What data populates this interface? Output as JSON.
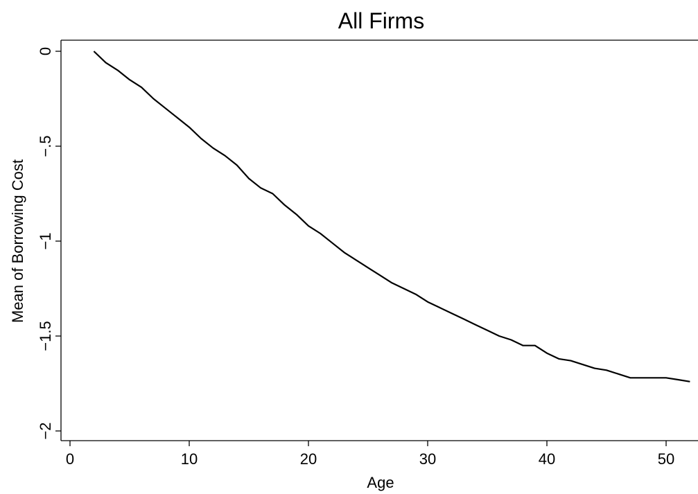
{
  "chart_data": {
    "type": "line",
    "title": "All Firms",
    "xlabel": "Age",
    "ylabel": "Mean of Borrowing Cost",
    "xlim": [
      -0.5,
      52.5
    ],
    "ylim": [
      -2.05,
      0.05
    ],
    "x_ticks": [
      0,
      10,
      20,
      30,
      40,
      50
    ],
    "x_tick_labels": [
      "0",
      "10",
      "20",
      "30",
      "40",
      "50"
    ],
    "y_ticks": [
      0,
      -0.5,
      -1,
      -1.5,
      -2
    ],
    "y_tick_labels": [
      "0",
      "−.5",
      "−1",
      "−1.5",
      "−2"
    ],
    "grid": false,
    "series": [
      {
        "x": [
          2,
          3,
          4,
          5,
          6,
          7,
          8,
          9,
          10,
          11,
          12,
          13,
          14,
          15,
          16,
          17,
          18,
          19,
          20,
          21,
          22,
          23,
          24,
          25,
          26,
          27,
          28,
          29,
          30,
          31,
          32,
          33,
          34,
          35,
          36,
          37,
          38,
          39,
          40,
          41,
          42,
          43,
          44,
          45,
          46,
          47,
          48,
          49,
          50,
          51,
          52
        ],
        "y": [
          0,
          -0.06,
          -0.1,
          -0.15,
          -0.19,
          -0.25,
          -0.3,
          -0.35,
          -0.4,
          -0.46,
          -0.51,
          -0.55,
          -0.6,
          -0.67,
          -0.72,
          -0.75,
          -0.81,
          -0.86,
          -0.92,
          -0.96,
          -1.01,
          -1.06,
          -1.1,
          -1.14,
          -1.18,
          -1.22,
          -1.25,
          -1.28,
          -1.32,
          -1.35,
          -1.38,
          -1.41,
          -1.44,
          -1.47,
          -1.5,
          -1.52,
          -1.55,
          -1.55,
          -1.59,
          -1.62,
          -1.63,
          -1.65,
          -1.67,
          -1.68,
          -1.7,
          -1.72,
          -1.72,
          -1.72,
          -1.72,
          -1.73,
          -1.74
        ]
      }
    ]
  }
}
